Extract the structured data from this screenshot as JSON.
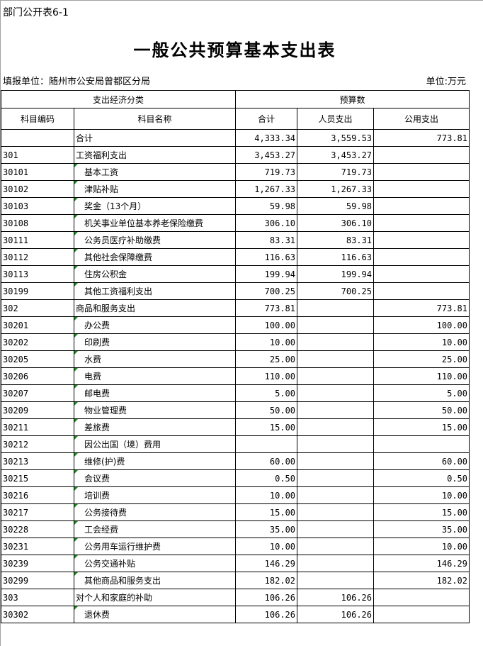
{
  "form_no": "部门公开表6-1",
  "title": "一般公共预算基本支出表",
  "unit_left": "填报单位：随州市公安局曾都区分局",
  "unit_right": "单位:万元",
  "headers": {
    "group1": "支出经济分类",
    "group2": "预算数",
    "code": "科目编码",
    "name": "科目名称",
    "total": "合计",
    "personnel": "人员支出",
    "public": "公用支出"
  },
  "rows": [
    {
      "code": "",
      "name": "合计",
      "total": "4,333.34",
      "personnel": "3,559.53",
      "public": "773.81",
      "level": 0
    },
    {
      "code": "301",
      "name": "工资福利支出",
      "total": "3,453.27",
      "personnel": "3,453.27",
      "public": "",
      "level": 0
    },
    {
      "code": "30101",
      "name": "基本工资",
      "total": "719.73",
      "personnel": "719.73",
      "public": "",
      "level": 1
    },
    {
      "code": "30102",
      "name": "津贴补贴",
      "total": "1,267.33",
      "personnel": "1,267.33",
      "public": "",
      "level": 1
    },
    {
      "code": "30103",
      "name": "奖金（13个月）",
      "total": "59.98",
      "personnel": "59.98",
      "public": "",
      "level": 1
    },
    {
      "code": "30108",
      "name": "机关事业单位基本养老保险缴费",
      "total": "306.10",
      "personnel": "306.10",
      "public": "",
      "level": 1
    },
    {
      "code": "30111",
      "name": "公务员医疗补助缴费",
      "total": "83.31",
      "personnel": "83.31",
      "public": "",
      "level": 1
    },
    {
      "code": "30112",
      "name": "其他社会保障缴费",
      "total": "116.63",
      "personnel": "116.63",
      "public": "",
      "level": 1
    },
    {
      "code": "30113",
      "name": "住房公积金",
      "total": "199.94",
      "personnel": "199.94",
      "public": "",
      "level": 1
    },
    {
      "code": "30199",
      "name": "其他工资福利支出",
      "total": "700.25",
      "personnel": "700.25",
      "public": "",
      "level": 1
    },
    {
      "code": "302",
      "name": "商品和服务支出",
      "total": "773.81",
      "personnel": "",
      "public": "773.81",
      "level": 0
    },
    {
      "code": "30201",
      "name": "办公费",
      "total": "100.00",
      "personnel": "",
      "public": "100.00",
      "level": 1
    },
    {
      "code": "30202",
      "name": "印刷费",
      "total": "10.00",
      "personnel": "",
      "public": "10.00",
      "level": 1
    },
    {
      "code": "30205",
      "name": "水费",
      "total": "25.00",
      "personnel": "",
      "public": "25.00",
      "level": 1
    },
    {
      "code": "30206",
      "name": "电费",
      "total": "110.00",
      "personnel": "",
      "public": "110.00",
      "level": 1
    },
    {
      "code": "30207",
      "name": "邮电费",
      "total": "5.00",
      "personnel": "",
      "public": "5.00",
      "level": 1
    },
    {
      "code": "30209",
      "name": "物业管理费",
      "total": "50.00",
      "personnel": "",
      "public": "50.00",
      "level": 1
    },
    {
      "code": "30211",
      "name": "差旅费",
      "total": "15.00",
      "personnel": "",
      "public": "15.00",
      "level": 1
    },
    {
      "code": "30212",
      "name": "因公出国（境）费用",
      "total": "",
      "personnel": "",
      "public": "",
      "level": 1
    },
    {
      "code": "30213",
      "name": "维修(护)费",
      "total": "60.00",
      "personnel": "",
      "public": "60.00",
      "level": 1
    },
    {
      "code": "30215",
      "name": "会议费",
      "total": "0.50",
      "personnel": "",
      "public": "0.50",
      "level": 1
    },
    {
      "code": "30216",
      "name": "培训费",
      "total": "10.00",
      "personnel": "",
      "public": "10.00",
      "level": 1
    },
    {
      "code": "30217",
      "name": "公务接待费",
      "total": "15.00",
      "personnel": "",
      "public": "15.00",
      "level": 1
    },
    {
      "code": "30228",
      "name": "工会经费",
      "total": "35.00",
      "personnel": "",
      "public": "35.00",
      "level": 1
    },
    {
      "code": "30231",
      "name": "公务用车运行维护费",
      "total": "10.00",
      "personnel": "",
      "public": "10.00",
      "level": 1
    },
    {
      "code": "30239",
      "name": "公务交通补贴",
      "total": "146.29",
      "personnel": "",
      "public": "146.29",
      "level": 1
    },
    {
      "code": "30299",
      "name": "其他商品和服务支出",
      "total": "182.02",
      "personnel": "",
      "public": "182.02",
      "level": 1
    },
    {
      "code": "303",
      "name": "对个人和家庭的补助",
      "total": "106.26",
      "personnel": "106.26",
      "public": "",
      "level": 0
    },
    {
      "code": "30302",
      "name": "退休费",
      "total": "106.26",
      "personnel": "106.26",
      "public": "",
      "level": 1
    }
  ]
}
